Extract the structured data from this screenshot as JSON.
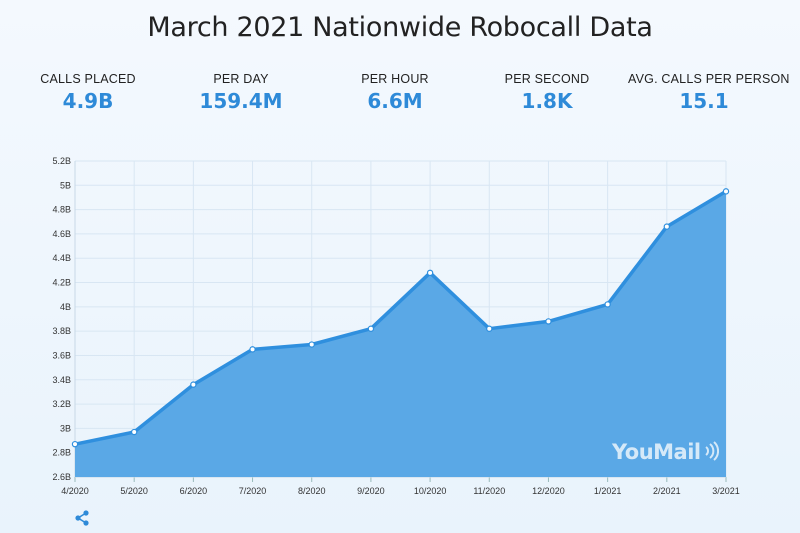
{
  "title": "March 2021 Nationwide Robocall Data",
  "stats": [
    {
      "label": "CALLS PLACED",
      "value": "4.9B"
    },
    {
      "label": "PER DAY",
      "value": "159.4M"
    },
    {
      "label": "PER HOUR",
      "value": "6.6M"
    },
    {
      "label": "PER SECOND",
      "value": "1.8K"
    },
    {
      "label": "AVG. CALLS PER PERSON",
      "value": "15.1"
    }
  ],
  "logo_text": "YouMail",
  "colors": {
    "line": "#2f8fde",
    "area": "#5aa8e6",
    "accent": "#2e8ad8"
  },
  "share_icon": "share-icon",
  "chart_data": {
    "type": "area",
    "title": "",
    "xlabel": "",
    "ylabel": "",
    "categories": [
      "4/2020",
      "5/2020",
      "6/2020",
      "7/2020",
      "8/2020",
      "9/2020",
      "10/2020",
      "11/2020",
      "12/2020",
      "1/2021",
      "2/2021",
      "3/2021"
    ],
    "values": [
      2.87,
      2.97,
      3.36,
      3.65,
      3.69,
      3.82,
      4.28,
      3.82,
      3.88,
      4.02,
      4.66,
      4.95
    ],
    "ylim": [
      2.6,
      5.2
    ],
    "yticks": [
      "2.6B",
      "2.8B",
      "3B",
      "3.2B",
      "3.4B",
      "3.6B",
      "3.8B",
      "4B",
      "4.2B",
      "4.4B",
      "4.6B",
      "4.8B",
      "5B",
      "5.2B"
    ],
    "grid": true,
    "legend": "none"
  }
}
